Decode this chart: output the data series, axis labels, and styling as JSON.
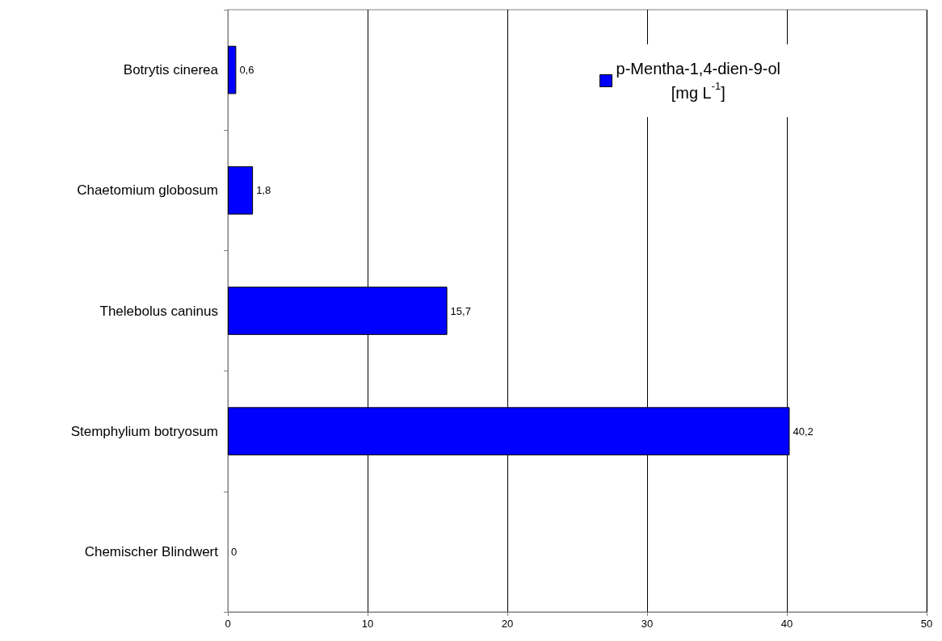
{
  "chart_data": {
    "type": "bar",
    "orientation": "horizontal",
    "categories": [
      "Botrytis cinerea",
      "Chaetomium globosum",
      "Thelebolus caninus",
      "Stemphylium botryosum",
      "Chemischer Blindwert"
    ],
    "series": [
      {
        "name": "p-Mentha-1,4-dien-9-ol\n[mg L$^{-1}$]",
        "color": "#0000ff",
        "values": [
          0.6,
          1.8,
          15.7,
          40.2,
          0
        ],
        "value_labels": [
          "0,6",
          "1,8",
          "15,7",
          "40,2",
          "0"
        ]
      }
    ],
    "xlim": [
      0,
      50
    ],
    "xticks": [
      0,
      10,
      20,
      30,
      40,
      50
    ],
    "grid": "x",
    "legend": "top right"
  }
}
